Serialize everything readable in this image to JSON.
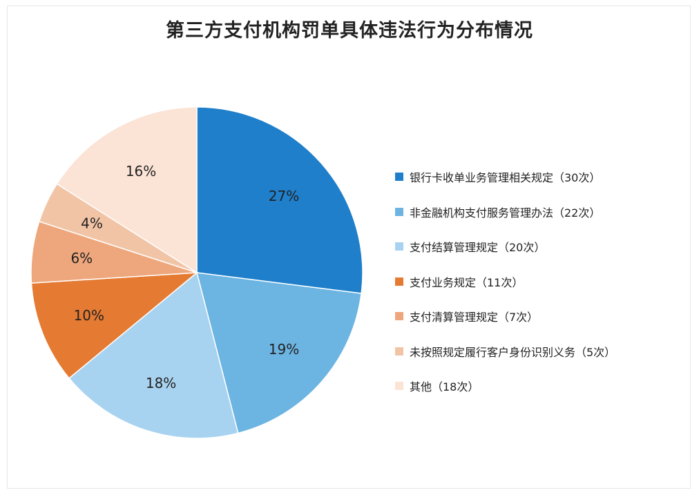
{
  "chart_data": {
    "type": "pie",
    "title": "第三方支付机构罚单具体违法行为分布情况",
    "slices": [
      {
        "legend": "银行卡收单业务管理相关规定（30次）",
        "value": 27,
        "label": "27%",
        "color": "#1f7fca"
      },
      {
        "legend": "非金融机构支付服务管理办法（22次）",
        "value": 19,
        "label": "19%",
        "color": "#6cb4e2"
      },
      {
        "legend": "支付结算管理规定（20次）",
        "value": 18,
        "label": "18%",
        "color": "#a8d3f0"
      },
      {
        "legend": "支付业务规定（11次）",
        "value": 10,
        "label": "10%",
        "color": "#e57a32"
      },
      {
        "legend": "支付清算管理规定（7次）",
        "value": 6,
        "label": "6%",
        "color": "#eea77c"
      },
      {
        "legend": "未按照规定履行客户身份识别义务（5次）",
        "value": 4,
        "label": "4%",
        "color": "#f2c4a6"
      },
      {
        "legend": "其他（18次）",
        "value": 16,
        "label": "16%",
        "color": "#fbe3d6"
      }
    ],
    "legend_position": "right"
  }
}
